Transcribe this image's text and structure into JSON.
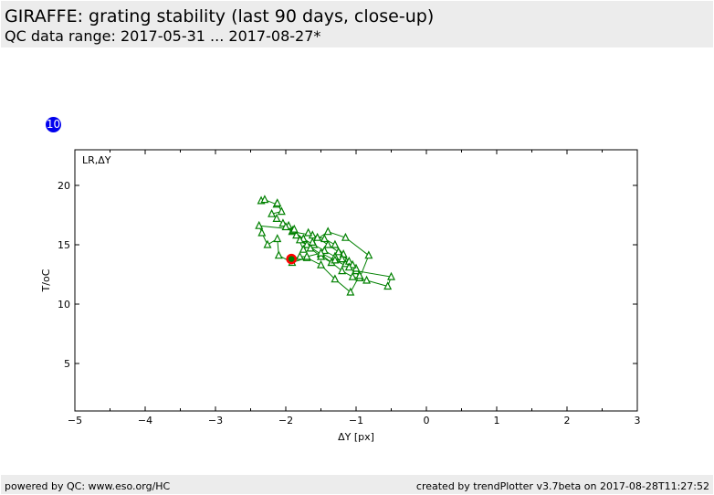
{
  "header": {
    "title": "GIRAFFE: grating stability (last 90 days, close-up)",
    "subtitle": "QC data range: 2017-05-31 ... 2017-08-27*"
  },
  "badge": "10",
  "footer": {
    "left": "powered by QC: www.eso.org/HC",
    "right": "created by trendPlotter v3.7beta on 2017-08-28T11:27:52"
  },
  "chart_data": {
    "type": "line",
    "title": "",
    "annotation": "LR,ΔY",
    "xlabel": "ΔY [px]",
    "ylabel": "T/oC",
    "xlim": [
      -5,
      3
    ],
    "ylim": [
      1,
      23
    ],
    "xticks": [
      -5,
      -4,
      -3,
      -2,
      -1,
      0,
      1,
      2,
      3
    ],
    "yticks": [
      5,
      10,
      15,
      20
    ],
    "grid": false,
    "series_color": "#008000",
    "marker": "triangle",
    "highlight_color": "#ff0000",
    "highlight": {
      "x": -1.92,
      "y": 13.8
    },
    "x": [
      -2.35,
      -2.3,
      -2.13,
      -2.12,
      -2.06,
      -2.2,
      -2.13,
      -2.04,
      -1.96,
      -1.91,
      -1.62,
      -1.45,
      -1.3,
      -1.18,
      -1.0,
      -0.5,
      -0.55,
      -0.85,
      -1.05,
      -1.2,
      -1.35,
      -1.5,
      -1.7,
      -1.85,
      -2.0,
      -1.9,
      -1.75,
      -1.6,
      -1.45,
      -1.3,
      -1.15,
      -1.0,
      -1.1,
      -1.25,
      -1.4,
      -1.55,
      -1.68,
      -1.8,
      -1.65,
      -1.5,
      -1.35,
      -1.2,
      -1.05,
      -0.95,
      -0.82,
      -1.15,
      -1.4,
      -1.62,
      -1.75,
      -1.88,
      -2.38,
      -2.34,
      -2.26,
      -2.12,
      -2.1,
      -1.91,
      -1.7,
      -1.5,
      -1.3,
      -1.08,
      -0.95,
      -1.1,
      -1.3,
      -1.5,
      -1.7,
      -1.8,
      -1.92
    ],
    "y": [
      18.7,
      18.8,
      18.4,
      18.5,
      17.8,
      17.6,
      17.2,
      16.8,
      16.6,
      16.1,
      15.8,
      15.5,
      15.0,
      14.2,
      12.8,
      12.3,
      11.5,
      12.0,
      12.3,
      12.8,
      13.5,
      14.2,
      15.0,
      15.8,
      16.5,
      16.2,
      15.5,
      15.0,
      14.5,
      14.0,
      13.4,
      13.0,
      13.6,
      14.4,
      15.0,
      15.6,
      16.0,
      15.4,
      14.7,
      14.0,
      13.5,
      13.8,
      13.3,
      12.2,
      14.1,
      15.6,
      16.1,
      15.2,
      14.6,
      16.3,
      16.6,
      16.0,
      15.0,
      15.5,
      14.1,
      13.5,
      13.9,
      13.3,
      12.1,
      11.0,
      12.4,
      13.1,
      13.7,
      14.3,
      14.0,
      14.0,
      13.8
    ]
  }
}
